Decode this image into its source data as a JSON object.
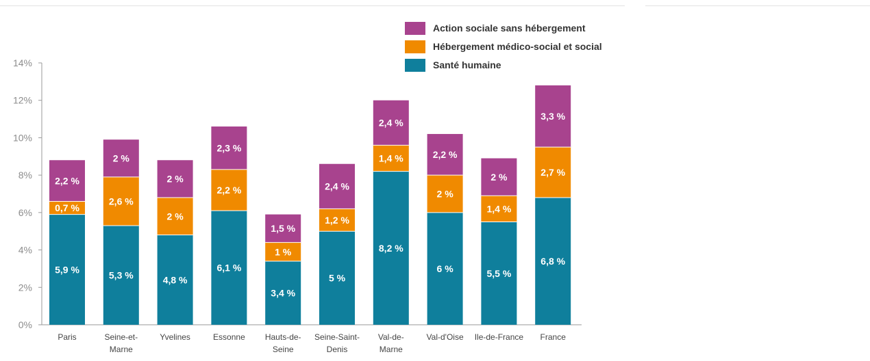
{
  "chart_data": {
    "type": "bar",
    "stacked": true,
    "title": "",
    "xlabel": "",
    "ylabel": "",
    "ylim": [
      0,
      14
    ],
    "yticks": [
      "0%",
      "2%",
      "4%",
      "6%",
      "8%",
      "10%",
      "12%",
      "14%"
    ],
    "grid": false,
    "legend_position": "top-right",
    "categories": [
      [
        "Paris"
      ],
      [
        "Seine-et-",
        "Marne"
      ],
      [
        "Yvelines"
      ],
      [
        "Essonne"
      ],
      [
        "Hauts-de-",
        "Seine"
      ],
      [
        "Seine-Saint-",
        "Denis"
      ],
      [
        "Val-de-",
        "Marne"
      ],
      [
        "Val-d'Oise"
      ],
      [
        "Ile-de-France"
      ],
      [
        "France"
      ]
    ],
    "series": [
      {
        "name": "Santé humaine",
        "color": "#0f7f9c",
        "values": [
          5.9,
          5.3,
          4.8,
          6.1,
          3.4,
          5.0,
          8.2,
          6.0,
          5.5,
          6.8
        ],
        "labels": [
          "5,9 %",
          "5,3 %",
          "4,8 %",
          "6,1 %",
          "3,4 %",
          "5 %",
          "8,2 %",
          "6 %",
          "5,5 %",
          "6,8 %"
        ]
      },
      {
        "name": "Hébergement médico-social et social",
        "color": "#f08a00",
        "values": [
          0.7,
          2.6,
          2.0,
          2.2,
          1.0,
          1.2,
          1.4,
          2.0,
          1.4,
          2.7
        ],
        "labels": [
          "0,7 %",
          "2,6 %",
          "2 %",
          "2,2 %",
          "1 %",
          "1,2 %",
          "1,4 %",
          "2 %",
          "1,4 %",
          "2,7 %"
        ]
      },
      {
        "name": "Action sociale sans hébergement",
        "color": "#a8438e",
        "values": [
          2.2,
          2.0,
          2.0,
          2.3,
          1.5,
          2.4,
          2.4,
          2.2,
          2.0,
          3.3
        ],
        "labels": [
          "2,2 %",
          "2 %",
          "2 %",
          "2,3 %",
          "1,5 %",
          "2,4 %",
          "2,4 %",
          "2,2 %",
          "2 %",
          "3,3 %"
        ]
      }
    ],
    "legend_order": [
      2,
      1,
      0
    ]
  }
}
